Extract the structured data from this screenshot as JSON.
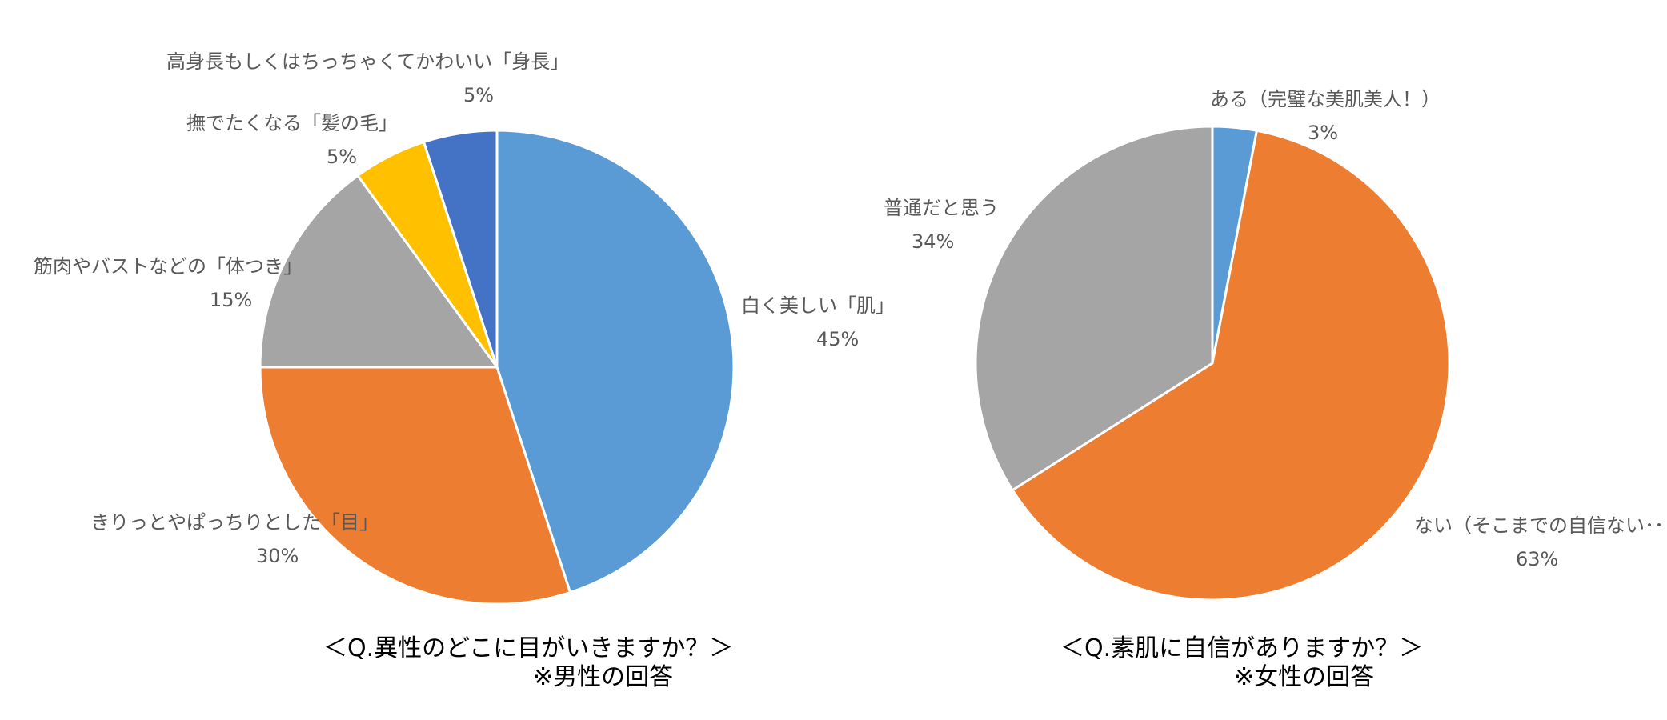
{
  "chart_data": [
    {
      "type": "pie",
      "title": "＜Q.異性のどこに目がいきますか？＞",
      "subtitle": "※男性の回答",
      "slices": [
        {
          "label": "白く美しい「肌」",
          "value": 45,
          "value_label": "45%",
          "color": "#5B9BD5"
        },
        {
          "label": "きりっとやぱっちりとした「目」",
          "value": 30,
          "value_label": "30%",
          "color": "#ED7D31"
        },
        {
          "label": "筋肉やバストなどの「体つき」",
          "value": 15,
          "value_label": "15%",
          "color": "#A5A5A5"
        },
        {
          "label": "撫でたくなる「髪の毛」",
          "value": 5,
          "value_label": "5%",
          "color": "#FFC000"
        },
        {
          "label": "高身長もしくはちっちゃくてかわいい「身長」",
          "value": 5,
          "value_label": "5%",
          "color": "#4472C4"
        }
      ]
    },
    {
      "type": "pie",
      "title": "＜Q.素肌に自信がありますか？＞",
      "subtitle": "※女性の回答",
      "slices": [
        {
          "label": "ある（完璧な美肌美人！）",
          "value": 3,
          "value_label": "3%",
          "color": "#5B9BD5"
        },
        {
          "label": "ない（そこまでの自信ない･･･）",
          "value": 63,
          "value_label": "63%",
          "color": "#ED7D31"
        },
        {
          "label": "普通だと思う",
          "value": 34,
          "value_label": "34%",
          "color": "#A5A5A5"
        }
      ]
    }
  ]
}
